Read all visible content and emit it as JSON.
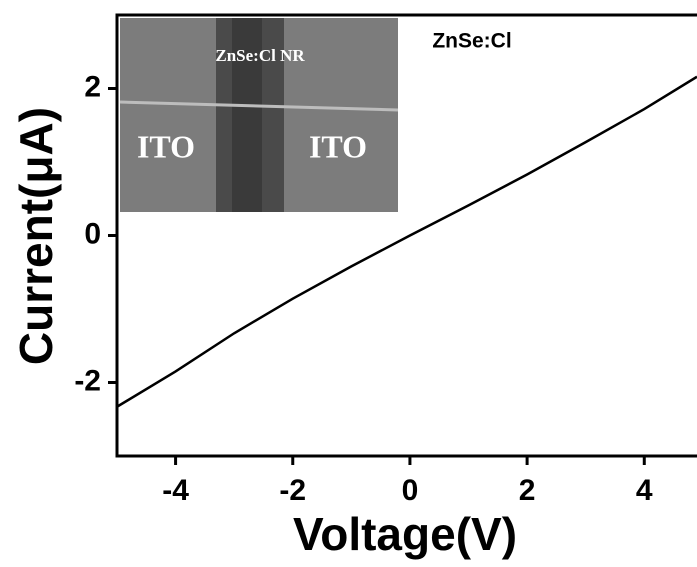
{
  "chart_data": {
    "type": "line",
    "xlabel": "Voltage(V)",
    "ylabel": "Current(μA)",
    "annotation": "ZnSe:Cl",
    "inset_labels": [
      "ZnSe:Cl NR",
      "ITO",
      "ITO"
    ],
    "x": [
      -5,
      -4,
      -3,
      -2,
      -1,
      0,
      1,
      2,
      3,
      4,
      4.9
    ],
    "series": [
      {
        "color": "#000000",
        "values": [
          -2.33,
          -1.85,
          -1.33,
          -0.86,
          -0.42,
          0,
          0.41,
          0.83,
          1.27,
          1.72,
          2.16
        ]
      }
    ],
    "xlim": [
      -5,
      4.9
    ],
    "xticks": [
      -4,
      -2,
      0,
      2,
      4
    ],
    "ylim": [
      -3,
      3
    ],
    "yticks": [
      -2,
      0,
      2
    ]
  }
}
